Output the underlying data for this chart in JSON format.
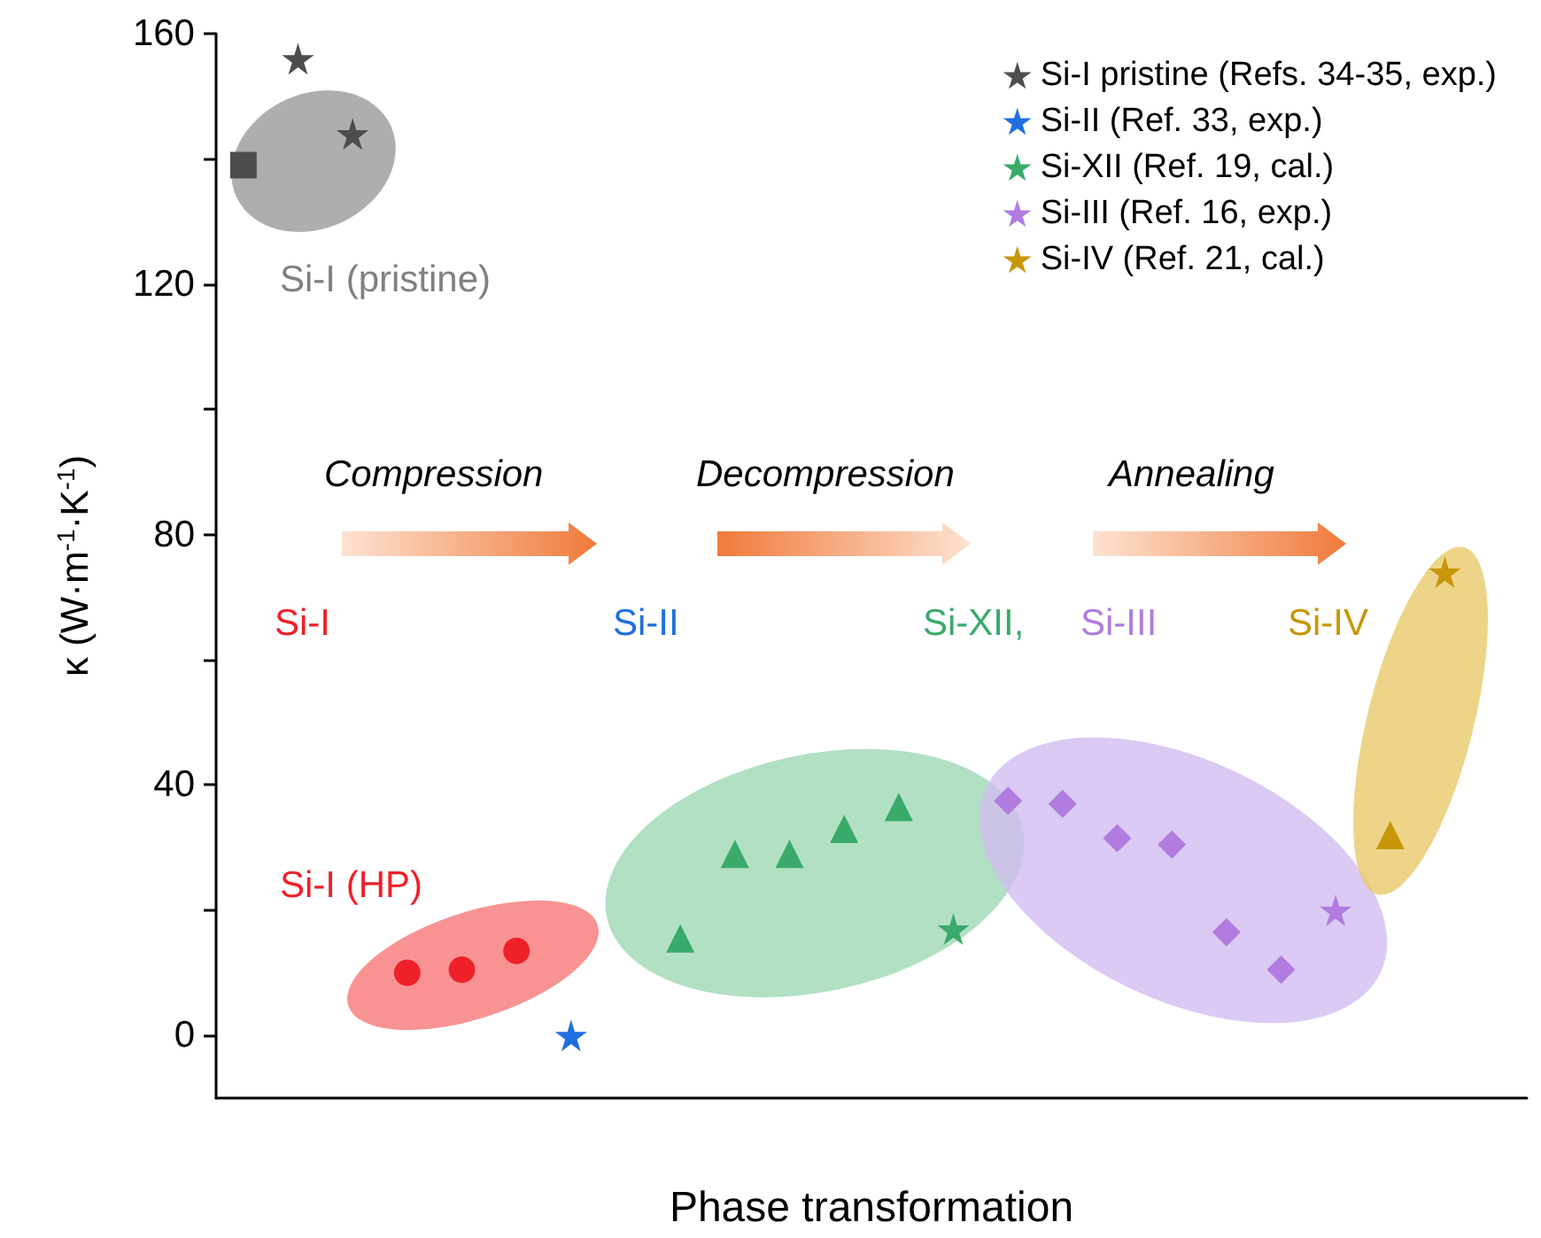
{
  "chart_data": {
    "type": "scatter",
    "xlabel": "Phase transformation",
    "ylabel": "κ (W·m$^{-1}$·K$^{-1}$)",
    "categories": [
      null,
      null,
      null,
      null,
      null,
      null,
      null,
      null,
      null,
      null,
      null,
      null,
      null,
      null,
      null,
      null,
      null,
      null,
      null,
      null,
      null,
      null,
      null,
      null
    ],
    "ylim": [
      -10,
      160
    ],
    "yticks": [
      0,
      {
        "value": 20,
        "label": null
      },
      40,
      {
        "value": 60,
        "label": null
      },
      80,
      {
        "value": 100,
        "label": null
      },
      120,
      {
        "value": 140,
        "label": null
      },
      160
    ],
    "grid": false,
    "legend": "top right",
    "series": [
      {
        "name": "Si-I pristine (Refs. 34-35, exp.)",
        "color": "#4d4d4d",
        "marker": "star",
        "values": [
          null,
          156,
          144,
          null,
          null,
          null,
          null,
          null,
          null,
          null,
          null,
          null,
          null,
          null,
          null,
          null,
          null,
          null,
          null,
          null,
          null,
          null,
          null,
          null
        ]
      },
      {
        "name": "Si-II (Ref. 33, exp.)",
        "color": "#1f6fe0",
        "marker": "star",
        "values": [
          null,
          null,
          null,
          null,
          null,
          null,
          0,
          null,
          null,
          null,
          null,
          null,
          null,
          null,
          null,
          null,
          null,
          null,
          null,
          null,
          null,
          null,
          null,
          null
        ]
      },
      {
        "name": "Si-XII (Ref. 19, cal.)",
        "color": "#3aaa6a",
        "marker": "star",
        "values": [
          null,
          null,
          null,
          null,
          null,
          null,
          null,
          null,
          null,
          null,
          null,
          null,
          null,
          17,
          null,
          null,
          null,
          null,
          null,
          null,
          null,
          null,
          null,
          null
        ]
      },
      {
        "name": "Si-III (Ref. 16, exp.)",
        "color": "#b07ce0",
        "marker": "star",
        "values": [
          null,
          null,
          null,
          null,
          null,
          null,
          null,
          null,
          null,
          null,
          null,
          null,
          null,
          null,
          null,
          null,
          null,
          null,
          null,
          null,
          20,
          null,
          null,
          null
        ]
      },
      {
        "name": "Si-IV (Ref. 21, cal.)",
        "color": "#c8960a",
        "marker": "star",
        "values": [
          null,
          null,
          null,
          null,
          null,
          null,
          null,
          null,
          null,
          null,
          null,
          null,
          null,
          null,
          null,
          null,
          null,
          null,
          null,
          null,
          null,
          null,
          74,
          null
        ]
      },
      {
        "color": "#4d4d4d",
        "marker": "square",
        "values": [
          139,
          null,
          null,
          null,
          null,
          null,
          null,
          null,
          null,
          null,
          null,
          null,
          null,
          null,
          null,
          null,
          null,
          null,
          null,
          null,
          null,
          null,
          null,
          null
        ]
      },
      {
        "color": "#f0202a",
        "marker": "circle",
        "values": [
          null,
          null,
          null,
          10,
          10.5,
          13.5,
          null,
          null,
          null,
          null,
          null,
          null,
          null,
          null,
          null,
          null,
          null,
          null,
          null,
          null,
          null,
          null,
          null,
          null
        ]
      },
      {
        "color": "#3aaa6a",
        "marker": "triangle",
        "values": [
          null,
          null,
          null,
          null,
          null,
          null,
          null,
          null,
          15.5,
          29,
          29,
          33,
          36.5,
          null,
          null,
          null,
          null,
          null,
          null,
          null,
          null,
          null,
          null,
          null
        ]
      },
      {
        "color": "#b07ce0",
        "marker": "diamond",
        "values": [
          null,
          null,
          null,
          null,
          null,
          null,
          null,
          null,
          null,
          null,
          null,
          null,
          null,
          null,
          37.5,
          37,
          31.5,
          30.5,
          16.5,
          10.5,
          null,
          null,
          null,
          null
        ]
      },
      {
        "color": "#c8960a",
        "marker": "triangle",
        "values": [
          null,
          null,
          null,
          null,
          null,
          null,
          null,
          null,
          null,
          null,
          null,
          null,
          null,
          null,
          null,
          null,
          null,
          null,
          null,
          null,
          null,
          32,
          null,
          null
        ]
      }
    ],
    "annotations": [
      "Si-I (pristine)",
      "Si-I (HP)",
      "Compression",
      "Decompression",
      "Annealing",
      "Si-I",
      "Si-II",
      "Si-XII,",
      "Si-III",
      "Si-IV"
    ]
  }
}
